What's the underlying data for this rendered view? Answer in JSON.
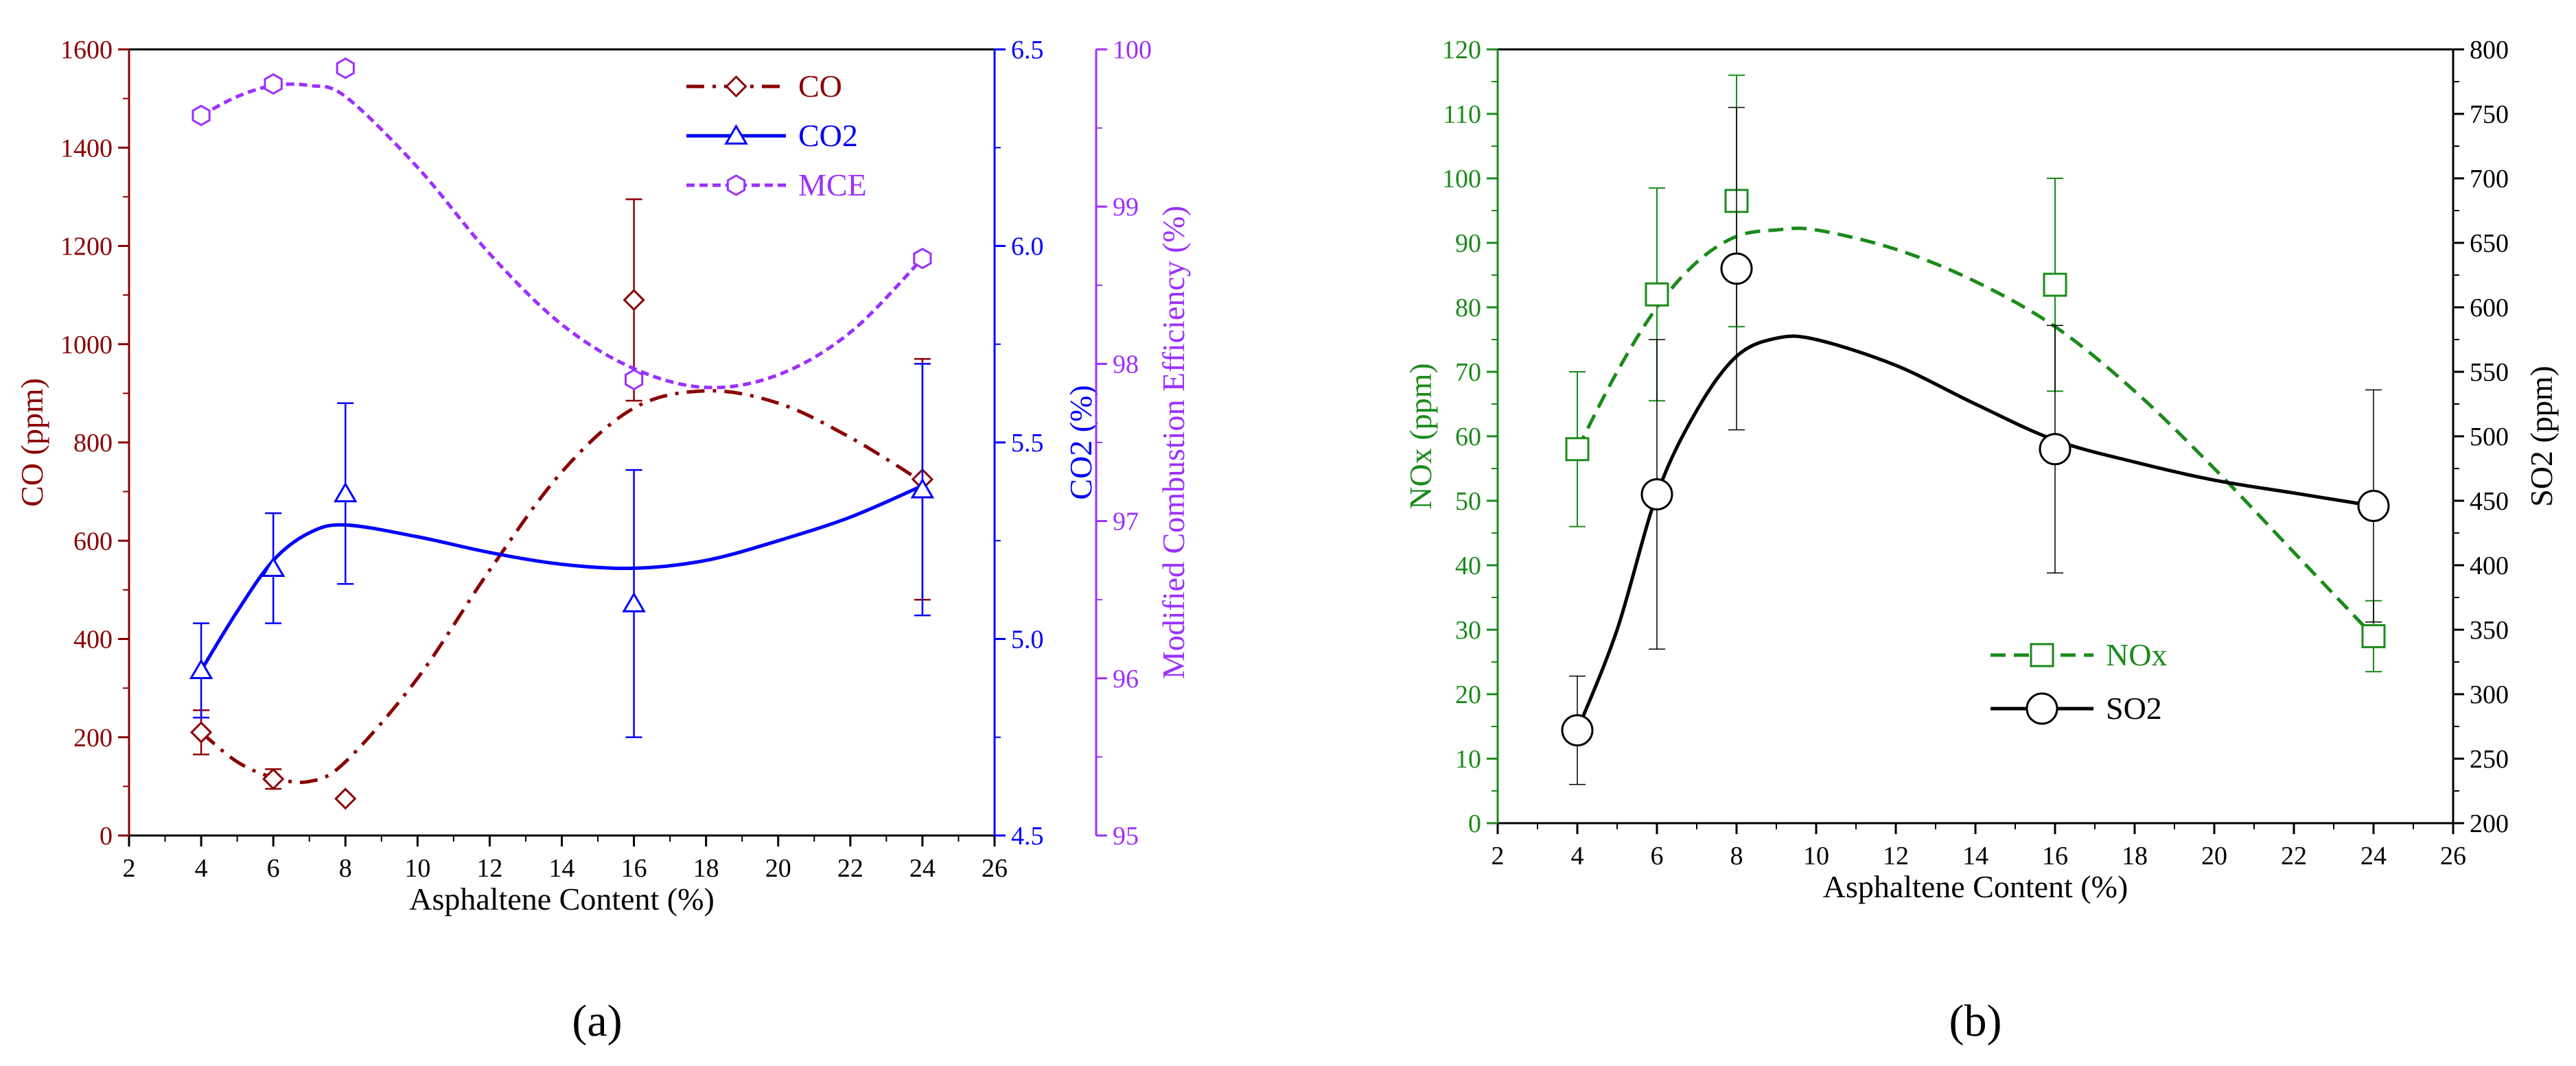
{
  "colors": {
    "co": "#8b0000",
    "co2": "#0000ff",
    "mce": "#9b30ff",
    "nox": "#1a8a1a",
    "so2": "#000000",
    "axis": "#000000"
  },
  "chart_data": [
    {
      "panel": "a",
      "panel_label": "(a)",
      "type": "line",
      "xlabel": "Asphaltene Content (%)",
      "xlim": [
        2,
        26
      ],
      "xticks": [
        2,
        4,
        6,
        8,
        10,
        12,
        14,
        16,
        18,
        20,
        22,
        24,
        26
      ],
      "axes": {
        "left": {
          "label": "CO (ppm)",
          "lim": [
            0,
            1600
          ],
          "ticks": [
            0,
            200,
            400,
            600,
            800,
            1000,
            1200,
            1400,
            1600
          ]
        },
        "right1": {
          "label": "CO2 (%)",
          "lim": [
            4.5,
            6.5
          ],
          "ticks": [
            "4.5",
            "5.0",
            "5.5",
            "6.0",
            "6.5"
          ]
        },
        "right2": {
          "label": "Modified Combustion Efficiency (%)",
          "lim": [
            95,
            100
          ],
          "ticks": [
            95,
            96,
            97,
            98,
            99,
            100
          ]
        }
      },
      "series": [
        {
          "name": "CO",
          "legend": "CO",
          "axis": "left",
          "marker": "diamond",
          "line": "dashdot",
          "colorKey": "co",
          "x": [
            4,
            6,
            8,
            16,
            24
          ],
          "y": [
            210,
            115,
            75,
            1090,
            725
          ],
          "err": [
            45,
            20,
            0,
            205,
            245
          ],
          "fit": [
            [
              4,
              210
            ],
            [
              5,
              150
            ],
            [
              6,
              118
            ],
            [
              7,
              110
            ],
            [
              8,
              150
            ],
            [
              10,
              320
            ],
            [
              12,
              540
            ],
            [
              14,
              740
            ],
            [
              16,
              870
            ],
            [
              18,
              905
            ],
            [
              20,
              880
            ],
            [
              22,
              810
            ],
            [
              24,
              720
            ]
          ]
        },
        {
          "name": "CO2",
          "legend": "CO2",
          "axis": "right1",
          "marker": "triangle",
          "line": "solid",
          "colorKey": "co2",
          "x": [
            4,
            6,
            8,
            16,
            24
          ],
          "y": [
            4.92,
            5.18,
            5.37,
            5.09,
            5.38
          ],
          "err": [
            0.12,
            0.14,
            0.23,
            0.34,
            0.32
          ],
          "fit": [
            [
              4,
              4.92
            ],
            [
              5,
              5.07
            ],
            [
              6,
              5.2
            ],
            [
              7,
              5.27
            ],
            [
              8,
              5.29
            ],
            [
              10,
              5.26
            ],
            [
              12,
              5.22
            ],
            [
              14,
              5.19
            ],
            [
              16,
              5.18
            ],
            [
              18,
              5.2
            ],
            [
              20,
              5.25
            ],
            [
              22,
              5.31
            ],
            [
              24,
              5.39
            ]
          ]
        },
        {
          "name": "MCE",
          "legend": "MCE",
          "axis": "right2",
          "marker": "hexagon",
          "line": "dotted",
          "colorKey": "mce",
          "x": [
            4,
            6,
            8,
            16,
            24
          ],
          "y": [
            99.58,
            99.78,
            99.88,
            97.9,
            98.67
          ],
          "err": [
            0,
            0,
            0,
            0,
            0
          ],
          "fit": [
            [
              4,
              99.58
            ],
            [
              5,
              99.7
            ],
            [
              6,
              99.77
            ],
            [
              7,
              99.77
            ],
            [
              8,
              99.7
            ],
            [
              10,
              99.25
            ],
            [
              12,
              98.7
            ],
            [
              14,
              98.25
            ],
            [
              16,
              97.97
            ],
            [
              18,
              97.85
            ],
            [
              20,
              97.93
            ],
            [
              22,
              98.2
            ],
            [
              24,
              98.67
            ]
          ]
        }
      ]
    },
    {
      "panel": "b",
      "panel_label": "(b)",
      "type": "line",
      "xlabel": "Asphaltene Content (%)",
      "xlim": [
        2,
        26
      ],
      "xticks": [
        2,
        4,
        6,
        8,
        10,
        12,
        14,
        16,
        18,
        20,
        22,
        24,
        26
      ],
      "axes": {
        "left": {
          "label": "NOx (ppm)",
          "lim": [
            0,
            120
          ],
          "ticks": [
            0,
            10,
            20,
            30,
            40,
            50,
            60,
            70,
            80,
            90,
            100,
            110,
            120
          ]
        },
        "right": {
          "label": "SO2 (ppm)",
          "lim": [
            200,
            800
          ],
          "ticks": [
            200,
            250,
            300,
            350,
            400,
            450,
            500,
            550,
            600,
            650,
            700,
            750,
            800
          ]
        }
      },
      "series": [
        {
          "name": "NOx",
          "legend": "NOx",
          "axis": "left",
          "marker": "square",
          "line": "dashed",
          "colorKey": "nox",
          "x": [
            4,
            6,
            8,
            16,
            24
          ],
          "y": [
            58,
            82,
            96.5,
            83.5,
            29
          ],
          "err": [
            12,
            16.5,
            19.5,
            16.5,
            5.5
          ],
          "fit": [
            [
              4,
              58
            ],
            [
              5,
              70
            ],
            [
              6,
              80
            ],
            [
              7,
              87
            ],
            [
              8,
              91
            ],
            [
              9,
              92
            ],
            [
              10,
              92
            ],
            [
              12,
              89
            ],
            [
              14,
              84
            ],
            [
              16,
              77
            ],
            [
              18,
              67
            ],
            [
              20,
              55
            ],
            [
              22,
              42
            ],
            [
              24,
              29
            ]
          ]
        },
        {
          "name": "SO2",
          "legend": "SO2",
          "axis": "right",
          "marker": "circle",
          "line": "solid",
          "colorKey": "so2",
          "x": [
            4,
            6,
            8,
            16,
            24
          ],
          "y": [
            272,
            455,
            630,
            490,
            446
          ],
          "err": [
            42,
            120,
            125,
            96,
            90
          ],
          "fit": [
            [
              4,
              272
            ],
            [
              5,
              350
            ],
            [
              6,
              455
            ],
            [
              7,
              520
            ],
            [
              8,
              562
            ],
            [
              9,
              576
            ],
            [
              10,
              575
            ],
            [
              12,
              555
            ],
            [
              14,
              525
            ],
            [
              16,
              497
            ],
            [
              18,
              480
            ],
            [
              20,
              466
            ],
            [
              22,
              456
            ],
            [
              24,
              446
            ]
          ]
        }
      ]
    }
  ]
}
